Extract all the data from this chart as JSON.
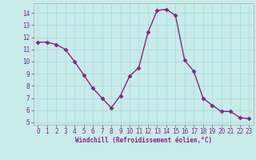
{
  "x": [
    0,
    1,
    2,
    3,
    4,
    5,
    6,
    7,
    8,
    9,
    10,
    11,
    12,
    13,
    14,
    15,
    16,
    17,
    18,
    19,
    20,
    21,
    22,
    23
  ],
  "y": [
    11.6,
    11.6,
    11.4,
    11.0,
    10.0,
    8.9,
    7.8,
    7.0,
    6.2,
    7.2,
    8.8,
    9.5,
    12.4,
    14.2,
    14.3,
    13.8,
    10.1,
    9.2,
    7.0,
    6.4,
    5.9,
    5.9,
    5.4,
    5.3
  ],
  "line_color": "#882288",
  "marker": "D",
  "marker_size": 2.5,
  "line_width": 1.0,
  "bg_color": "#c8ecea",
  "grid_color": "#aadddd",
  "xlabel": "Windchill (Refroidissement éolien,°C)",
  "xlabel_color": "#882288",
  "tick_color": "#882288",
  "label_color": "#882288",
  "ylim": [
    4.8,
    14.8
  ],
  "xlim": [
    -0.5,
    23.5
  ],
  "yticks": [
    5,
    6,
    7,
    8,
    9,
    10,
    11,
    12,
    13,
    14
  ],
  "xticks": [
    0,
    1,
    2,
    3,
    4,
    5,
    6,
    7,
    8,
    9,
    10,
    11,
    12,
    13,
    14,
    15,
    16,
    17,
    18,
    19,
    20,
    21,
    22,
    23
  ],
  "spine_color": "#aaaaaa"
}
